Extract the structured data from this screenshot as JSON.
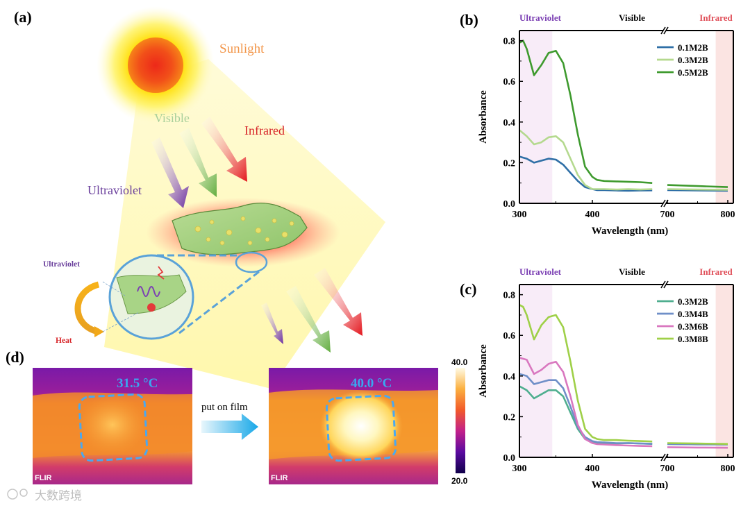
{
  "figure": {
    "panel_a": {
      "label": "(a)",
      "sunlight": "Sunlight",
      "visible": "Visible",
      "infrared": "Infrared",
      "ultraviolet": "Ultraviolet",
      "inset_ultraviolet": "Ultraviolet",
      "inset_heat": "Heat"
    },
    "panel_d": {
      "label": "(d)",
      "temp_before": "31.5 °C",
      "temp_after": "40.0 °C",
      "arrow_text": "put on film",
      "flir_left": "FLIR",
      "flir_right": "FLIR",
      "colorbar_max": "40.0",
      "colorbar_min": "20.0"
    },
    "watermark": "大数跨境"
  },
  "chart_data": [
    {
      "type": "line",
      "label": "(b)",
      "xlabel": "Wavelength (nm)",
      "ylabel": "Absorbance",
      "xticks": [
        "300",
        "400",
        "700",
        "800"
      ],
      "yticks": [
        "0.0",
        "0.2",
        "0.4",
        "0.6",
        "0.8"
      ],
      "ylim": [
        0,
        0.85
      ],
      "regions": {
        "ultraviolet": "Ultraviolet",
        "visible": "Visible",
        "infrared": "Infrared"
      },
      "colors": {
        "ultraviolet": "#7b3fb3",
        "infrared": "#e0505a"
      },
      "series": [
        {
          "name": "0.1M2B",
          "color": "#2f6fa6",
          "x": [
            300,
            310,
            320,
            330,
            340,
            350,
            360,
            370,
            380,
            390,
            400,
            420,
            450,
            500,
            550,
            600,
            650,
            700,
            750,
            800
          ],
          "y": [
            0.23,
            0.22,
            0.2,
            0.21,
            0.22,
            0.215,
            0.19,
            0.15,
            0.11,
            0.08,
            0.07,
            0.065,
            0.065,
            0.063,
            0.062,
            0.063,
            0.064,
            0.065,
            0.063,
            0.062
          ]
        },
        {
          "name": "0.3M2B",
          "color": "#b4d98e",
          "x": [
            300,
            310,
            320,
            330,
            340,
            350,
            360,
            370,
            380,
            390,
            400,
            420,
            450,
            500,
            550,
            600,
            650,
            700,
            750,
            800
          ],
          "y": [
            0.36,
            0.33,
            0.29,
            0.3,
            0.325,
            0.33,
            0.3,
            0.22,
            0.14,
            0.09,
            0.07,
            0.07,
            0.07,
            0.068,
            0.07,
            0.068,
            0.07,
            0.07,
            0.068,
            0.067
          ]
        },
        {
          "name": "0.5M2B",
          "color": "#3e9a2e",
          "x": [
            300,
            305,
            310,
            320,
            330,
            340,
            350,
            360,
            370,
            380,
            390,
            400,
            420,
            450,
            500,
            550,
            600,
            650,
            700,
            750,
            800
          ],
          "y": [
            0.79,
            0.8,
            0.76,
            0.63,
            0.68,
            0.74,
            0.75,
            0.69,
            0.53,
            0.34,
            0.18,
            0.13,
            0.115,
            0.11,
            0.108,
            0.106,
            0.104,
            0.1,
            0.09,
            0.085,
            0.08
          ]
        }
      ]
    },
    {
      "type": "line",
      "label": "(c)",
      "xlabel": "Wavelength (nm)",
      "ylabel": "Absorbance",
      "xticks": [
        "300",
        "400",
        "700",
        "800"
      ],
      "yticks": [
        "0.0",
        "0.2",
        "0.4",
        "0.6",
        "0.8"
      ],
      "ylim": [
        0,
        0.85
      ],
      "regions": {
        "ultraviolet": "Ultraviolet",
        "visible": "Visible",
        "infrared": "Infrared"
      },
      "colors": {
        "ultraviolet": "#7b3fb3",
        "infrared": "#e0505a"
      },
      "series": [
        {
          "name": "0.3M2B",
          "color": "#4fae8f",
          "x": [
            300,
            310,
            320,
            330,
            340,
            350,
            360,
            370,
            380,
            390,
            400,
            420,
            450,
            500,
            550,
            600,
            650,
            700,
            750,
            800
          ],
          "y": [
            0.35,
            0.33,
            0.29,
            0.31,
            0.33,
            0.33,
            0.3,
            0.22,
            0.14,
            0.09,
            0.075,
            0.07,
            0.07,
            0.068,
            0.07,
            0.068,
            0.066,
            0.065,
            0.064,
            0.064
          ]
        },
        {
          "name": "0.3M4B",
          "color": "#6f8fc8",
          "x": [
            300,
            310,
            320,
            330,
            340,
            350,
            360,
            370,
            380,
            390,
            400,
            420,
            450,
            500,
            550,
            600,
            650,
            700,
            750,
            800
          ],
          "y": [
            0.41,
            0.4,
            0.36,
            0.37,
            0.38,
            0.38,
            0.34,
            0.25,
            0.15,
            0.1,
            0.08,
            0.075,
            0.073,
            0.07,
            0.07,
            0.068,
            0.067,
            0.066,
            0.064,
            0.063
          ]
        },
        {
          "name": "0.3M6B",
          "color": "#d977bf",
          "x": [
            300,
            310,
            320,
            330,
            340,
            350,
            360,
            370,
            380,
            390,
            400,
            420,
            450,
            500,
            550,
            600,
            650,
            700,
            750,
            800
          ],
          "y": [
            0.49,
            0.48,
            0.41,
            0.43,
            0.46,
            0.47,
            0.42,
            0.3,
            0.16,
            0.09,
            0.07,
            0.065,
            0.063,
            0.06,
            0.058,
            0.056,
            0.055,
            0.05,
            0.048,
            0.047
          ]
        },
        {
          "name": "0.3M8B",
          "color": "#9fd048",
          "x": [
            300,
            305,
            310,
            320,
            330,
            340,
            350,
            360,
            370,
            380,
            390,
            400,
            420,
            450,
            500,
            550,
            600,
            650,
            700,
            750,
            800
          ],
          "y": [
            0.75,
            0.74,
            0.7,
            0.58,
            0.65,
            0.69,
            0.7,
            0.64,
            0.47,
            0.28,
            0.14,
            0.1,
            0.09,
            0.085,
            0.085,
            0.082,
            0.08,
            0.078,
            0.07,
            0.068,
            0.066
          ]
        }
      ]
    }
  ]
}
